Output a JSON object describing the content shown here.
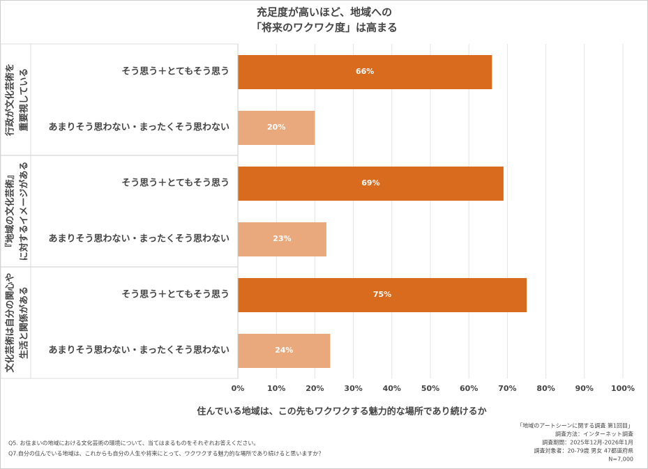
{
  "chart_data": {
    "type": "bar",
    "orientation": "horizontal",
    "title": [
      "充足度が高いほど、地域への",
      "「将来のワクワク度」は高まる"
    ],
    "groups": [
      [
        "行政が文化芸術を",
        "重要視している"
      ],
      [
        "『地域の文化芸術』",
        "に対するイメージがある"
      ],
      [
        "文化芸術は自分の関心や",
        "生活と関係がある"
      ]
    ],
    "categories": [
      "そう思う＋とてもそう思う",
      "あまりそう思わない・まったくそう思わない",
      "そう思う＋とてもそう思う",
      "あまりそう思わない・まったくそう思わない",
      "そう思う＋とてもそう思う",
      "あまりそう思わない・まったくそう思わない"
    ],
    "values": [
      66,
      20,
      69,
      23,
      75,
      24
    ],
    "value_labels": [
      "66%",
      "20%",
      "69%",
      "23%",
      "75%",
      "24%"
    ],
    "colors": [
      "#d96b1f",
      "#eaa97c",
      "#d96b1f",
      "#eaa97c",
      "#d96b1f",
      "#eaa97c"
    ],
    "xlim": [
      0,
      100
    ],
    "xticks": [
      {
        "value": 0,
        "label": "0%"
      },
      {
        "value": 10,
        "label": "10%"
      },
      {
        "value": 20,
        "label": "20%"
      },
      {
        "value": 30,
        "label": "30%"
      },
      {
        "value": 40,
        "label": "40%"
      },
      {
        "value": 50,
        "label": "50%"
      },
      {
        "value": 60,
        "label": "60%"
      },
      {
        "value": 70,
        "label": "70%"
      },
      {
        "value": 80,
        "label": "80%"
      },
      {
        "value": 90,
        "label": "90%"
      },
      {
        "value": 100,
        "label": "100%"
      }
    ],
    "grid": true,
    "xlabel": "住んでいる地域は、この先もワクワクする魅力的な場所であり続けるか",
    "notes": [
      "Q5. お住まいの地域における文化芸術の環境について、当てはまるものをそれぞれお答えください。",
      "Q7.自分の住んでいる地域は、これからも自分の人生や将来にとって、ワクワクする魅力的な場所であり続けると思いますか？"
    ],
    "source": [
      "「地域のアートシーンに関する調査 第1回目」",
      "調査方法：インターネット調査",
      "調査期間：2025年12月-2026年1月",
      "調査対象者：20-79歳 男女 47都道府県",
      "N=7,000"
    ]
  }
}
